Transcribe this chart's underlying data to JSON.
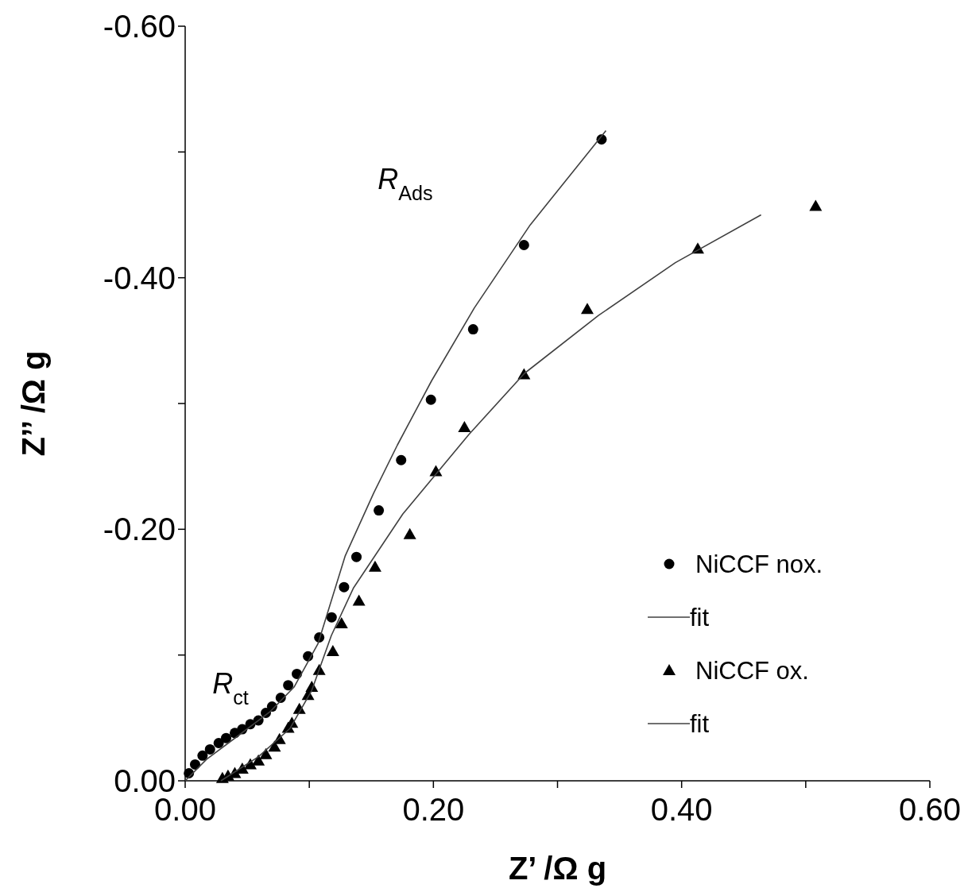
{
  "chart_data": {
    "type": "scatter",
    "xlabel": "Z’ /Ω g",
    "ylabel": "Z’’ /Ω g",
    "xlim": [
      0,
      0.6
    ],
    "ylim": [
      0,
      -0.6
    ],
    "xticks": [
      {
        "value": 0,
        "label": "0.00"
      },
      {
        "value": 0.1,
        "label": null
      },
      {
        "value": 0.2,
        "label": "0.20"
      },
      {
        "value": 0.3,
        "label": null
      },
      {
        "value": 0.4,
        "label": "0.40"
      },
      {
        "value": 0.5,
        "label": null
      },
      {
        "value": 0.6,
        "label": "0.60"
      }
    ],
    "yticks": [
      {
        "value": 0,
        "label": "0.00"
      },
      {
        "value": -0.1,
        "label": null
      },
      {
        "value": -0.2,
        "label": "-0.20"
      },
      {
        "value": -0.3,
        "label": null
      },
      {
        "value": -0.4,
        "label": "-0.40"
      },
      {
        "value": -0.5,
        "label": null
      },
      {
        "value": -0.6,
        "label": "-0.60"
      }
    ],
    "grid": false,
    "legend": "right",
    "annotations": [
      "R$_{ct}$",
      "R$_{Ads}$"
    ],
    "series": [
      {
        "name": "NiCCF nox.",
        "marker": "circle",
        "color": "#000000",
        "x": [
          0.003,
          0.008,
          0.014,
          0.02,
          0.027,
          0.033,
          0.04,
          0.046,
          0.0525,
          0.059,
          0.065,
          0.07,
          0.077,
          0.083,
          0.09,
          0.099,
          0.108,
          0.118,
          0.128,
          0.138,
          0.156,
          0.174,
          0.198,
          0.232,
          0.273,
          0.3355
        ],
        "values": [
          -0.006,
          -0.013,
          -0.02,
          -0.025,
          -0.03,
          -0.034,
          -0.038,
          -0.041,
          -0.045,
          -0.048,
          -0.054,
          -0.059,
          -0.066,
          -0.076,
          -0.085,
          -0.099,
          -0.114,
          -0.13,
          -0.154,
          -0.178,
          -0.215,
          -0.255,
          -0.303,
          -0.359,
          -0.426,
          -0.51
        ]
      },
      {
        "name": "fit",
        "type": "line",
        "marker": "none",
        "color": "#404040",
        "x": [
          0,
          0.0173,
          0.0429,
          0.0685,
          0.0877,
          0.107,
          0.129,
          0.152,
          0.171,
          0.1985,
          0.233,
          0.278,
          0.339
        ],
        "values": [
          0,
          -0.0171,
          -0.036,
          -0.055,
          -0.0745,
          -0.109,
          -0.179,
          -0.229,
          -0.267,
          -0.318,
          -0.376,
          -0.442,
          -0.517
        ]
      },
      {
        "name": "NiCCF ox.",
        "marker": "triangle",
        "color": "#000000",
        "x": [
          0.03,
          0.0345,
          0.04,
          0.046,
          0.0525,
          0.059,
          0.065,
          0.072,
          0.076,
          0.083,
          0.086,
          0.092,
          0.099,
          0.102,
          0.108,
          0.119,
          0.126,
          0.14,
          0.153,
          0.181,
          0.202,
          0.225,
          0.273,
          0.324,
          0.413,
          0.508
        ],
        "values": [
          -0.002,
          -0.004,
          -0.006,
          -0.0095,
          -0.013,
          -0.016,
          -0.021,
          -0.027,
          -0.033,
          -0.042,
          -0.046,
          -0.057,
          -0.068,
          -0.0745,
          -0.088,
          -0.103,
          -0.125,
          -0.143,
          -0.17,
          -0.196,
          -0.246,
          -0.281,
          -0.323,
          -0.375,
          -0.423,
          -0.457
        ]
      },
      {
        "name": "fit",
        "type": "line",
        "marker": "none",
        "color": "#404040",
        "x": [
          0.0288,
          0.0589,
          0.0845,
          0.1018,
          0.1178,
          0.1357,
          0.1754,
          0.2286,
          0.2734,
          0.333,
          0.395,
          0.464
        ],
        "values": [
          0,
          -0.019,
          -0.0417,
          -0.0714,
          -0.1156,
          -0.1535,
          -0.2122,
          -0.2754,
          -0.324,
          -0.37,
          -0.412,
          -0.45
        ]
      }
    ]
  }
}
